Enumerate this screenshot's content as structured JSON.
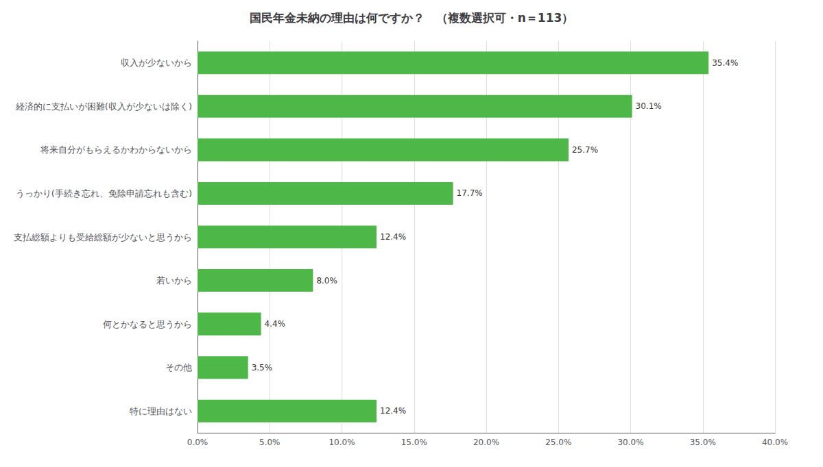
{
  "chart_data": {
    "type": "bar",
    "orientation": "horizontal",
    "title": "国民年金未納の理由は何ですか？　（複数選択可・n＝113）",
    "categories": [
      "収入が少ないから",
      "経済的に支払いが困難(収入が少ないは除く)",
      "将来自分がもらえるかわからないから",
      "うっかり(手続き忘れ、免除申請忘れも含む)",
      "支払総額よりも受給総額が少ないと思うから",
      "若いから",
      "何とかなると思うから",
      "その他",
      "特に理由はない"
    ],
    "values": [
      35.4,
      30.1,
      25.7,
      17.7,
      12.4,
      8.0,
      4.4,
      3.5,
      12.4
    ],
    "value_labels": [
      "35.4%",
      "30.1%",
      "25.7%",
      "17.7%",
      "12.4%",
      "8.0%",
      "4.4%",
      "3.5%",
      "12.4%"
    ],
    "data_labels": true,
    "color": "#4db848",
    "xlim": [
      0,
      40
    ],
    "xticks": [
      {
        "value": 0,
        "label": "0.0%"
      },
      {
        "value": 5,
        "label": "5.0%"
      },
      {
        "value": 10,
        "label": "10.0%"
      },
      {
        "value": 15,
        "label": "15.0%"
      },
      {
        "value": 20,
        "label": "20.0%"
      },
      {
        "value": 25,
        "label": "25.0%"
      },
      {
        "value": 30,
        "label": "30.0%"
      },
      {
        "value": 35,
        "label": "35.0%"
      },
      {
        "value": 40,
        "label": "40.0%"
      }
    ],
    "grid": true
  }
}
